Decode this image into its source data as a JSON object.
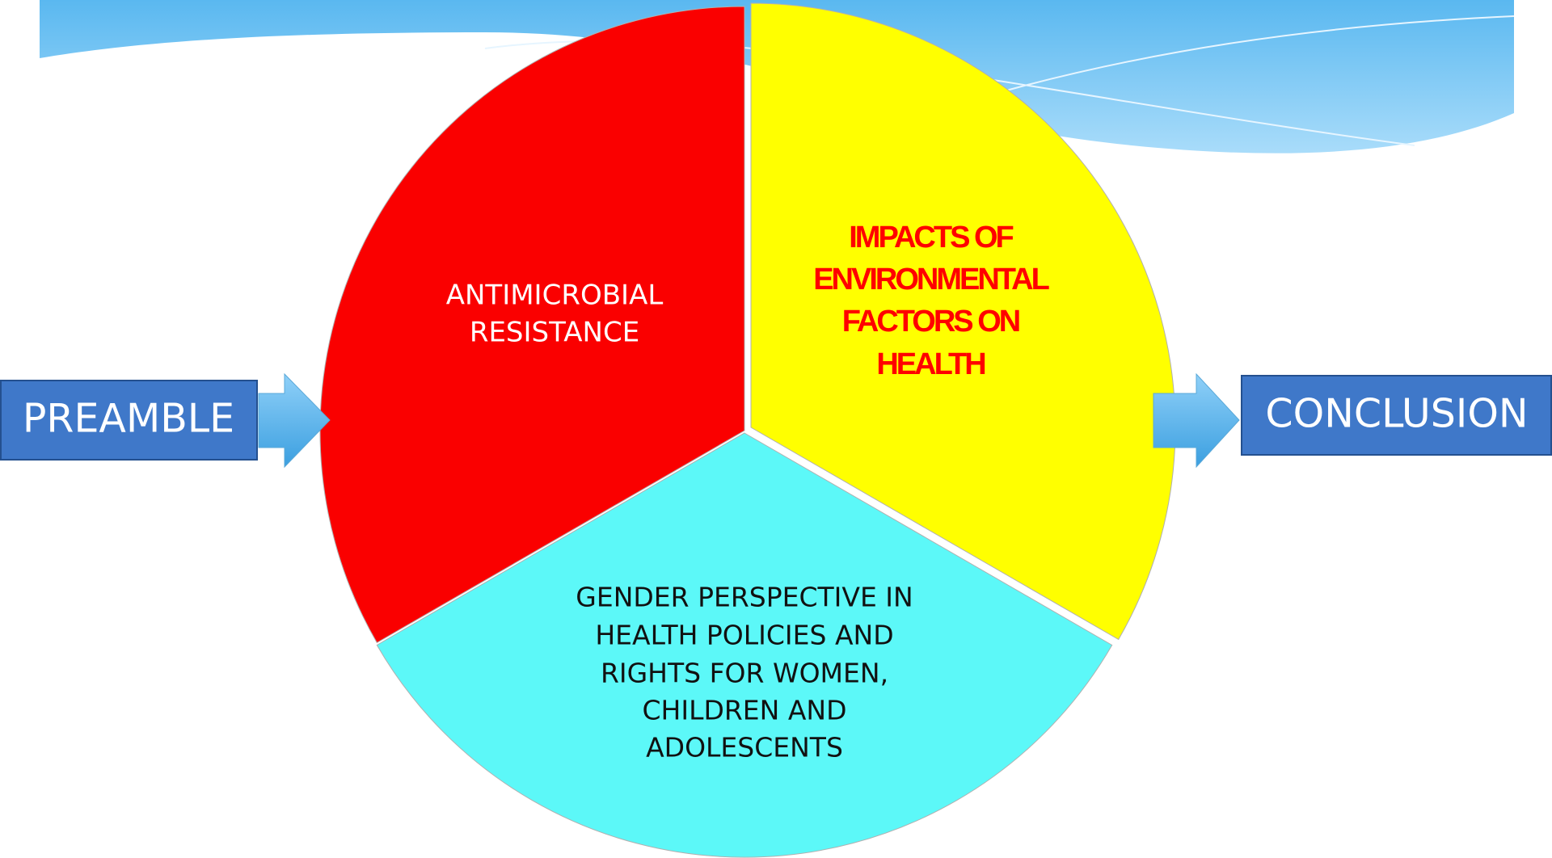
{
  "start": "PREAMBLE",
  "end": "CONCLUSION",
  "sections": [
    {
      "lines": [
        "ANTIMICROBIAL",
        "RESISTANCE"
      ]
    },
    {
      "lines": [
        "IMPACTS OF",
        "ENVIRONMENTAL",
        "FACTORS ON",
        "HEALTH"
      ]
    },
    {
      "lines": [
        "GENDER PERSPECTIVE IN",
        "HEALTH POLICIES AND",
        "RIGHTS FOR WOMEN,",
        "CHILDREN AND",
        "ADOLESCENTS"
      ]
    }
  ]
}
